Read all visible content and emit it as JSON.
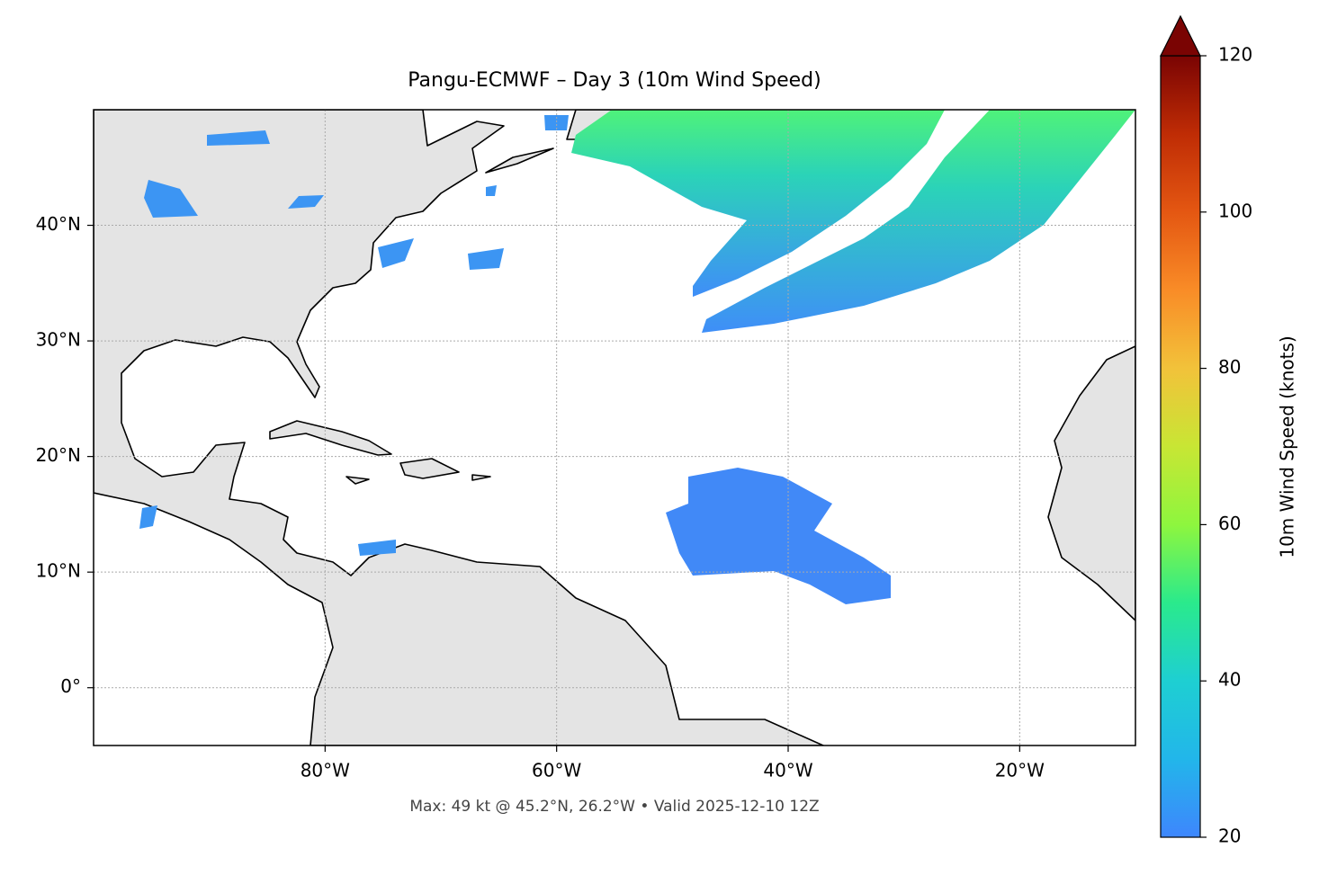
{
  "chart_data": {
    "type": "map",
    "title": "Pangu-ECMWF – Day 3 (10m Wind Speed)",
    "caption": "Max: 49 kt @ 45.2°N, 26.2°W • Valid 2025-12-10 12Z",
    "xlim": [
      -100,
      -10
    ],
    "ylim": [
      -5,
      50
    ],
    "xticks": [
      {
        "value": -80,
        "label": "80°W"
      },
      {
        "value": -60,
        "label": "60°W"
      },
      {
        "value": -40,
        "label": "40°W"
      },
      {
        "value": -20,
        "label": "20°W"
      }
    ],
    "yticks": [
      {
        "value": 0,
        "label": "0°"
      },
      {
        "value": 10,
        "label": "10°N"
      },
      {
        "value": 20,
        "label": "20°N"
      },
      {
        "value": 30,
        "label": "30°N"
      },
      {
        "value": 40,
        "label": "40°N"
      }
    ],
    "grid": true,
    "colorbar": {
      "label": "10m Wind Speed (knots)",
      "lim": [
        20,
        120
      ],
      "ticks": [
        20,
        40,
        60,
        80,
        100,
        120
      ],
      "extend": "max"
    }
  }
}
